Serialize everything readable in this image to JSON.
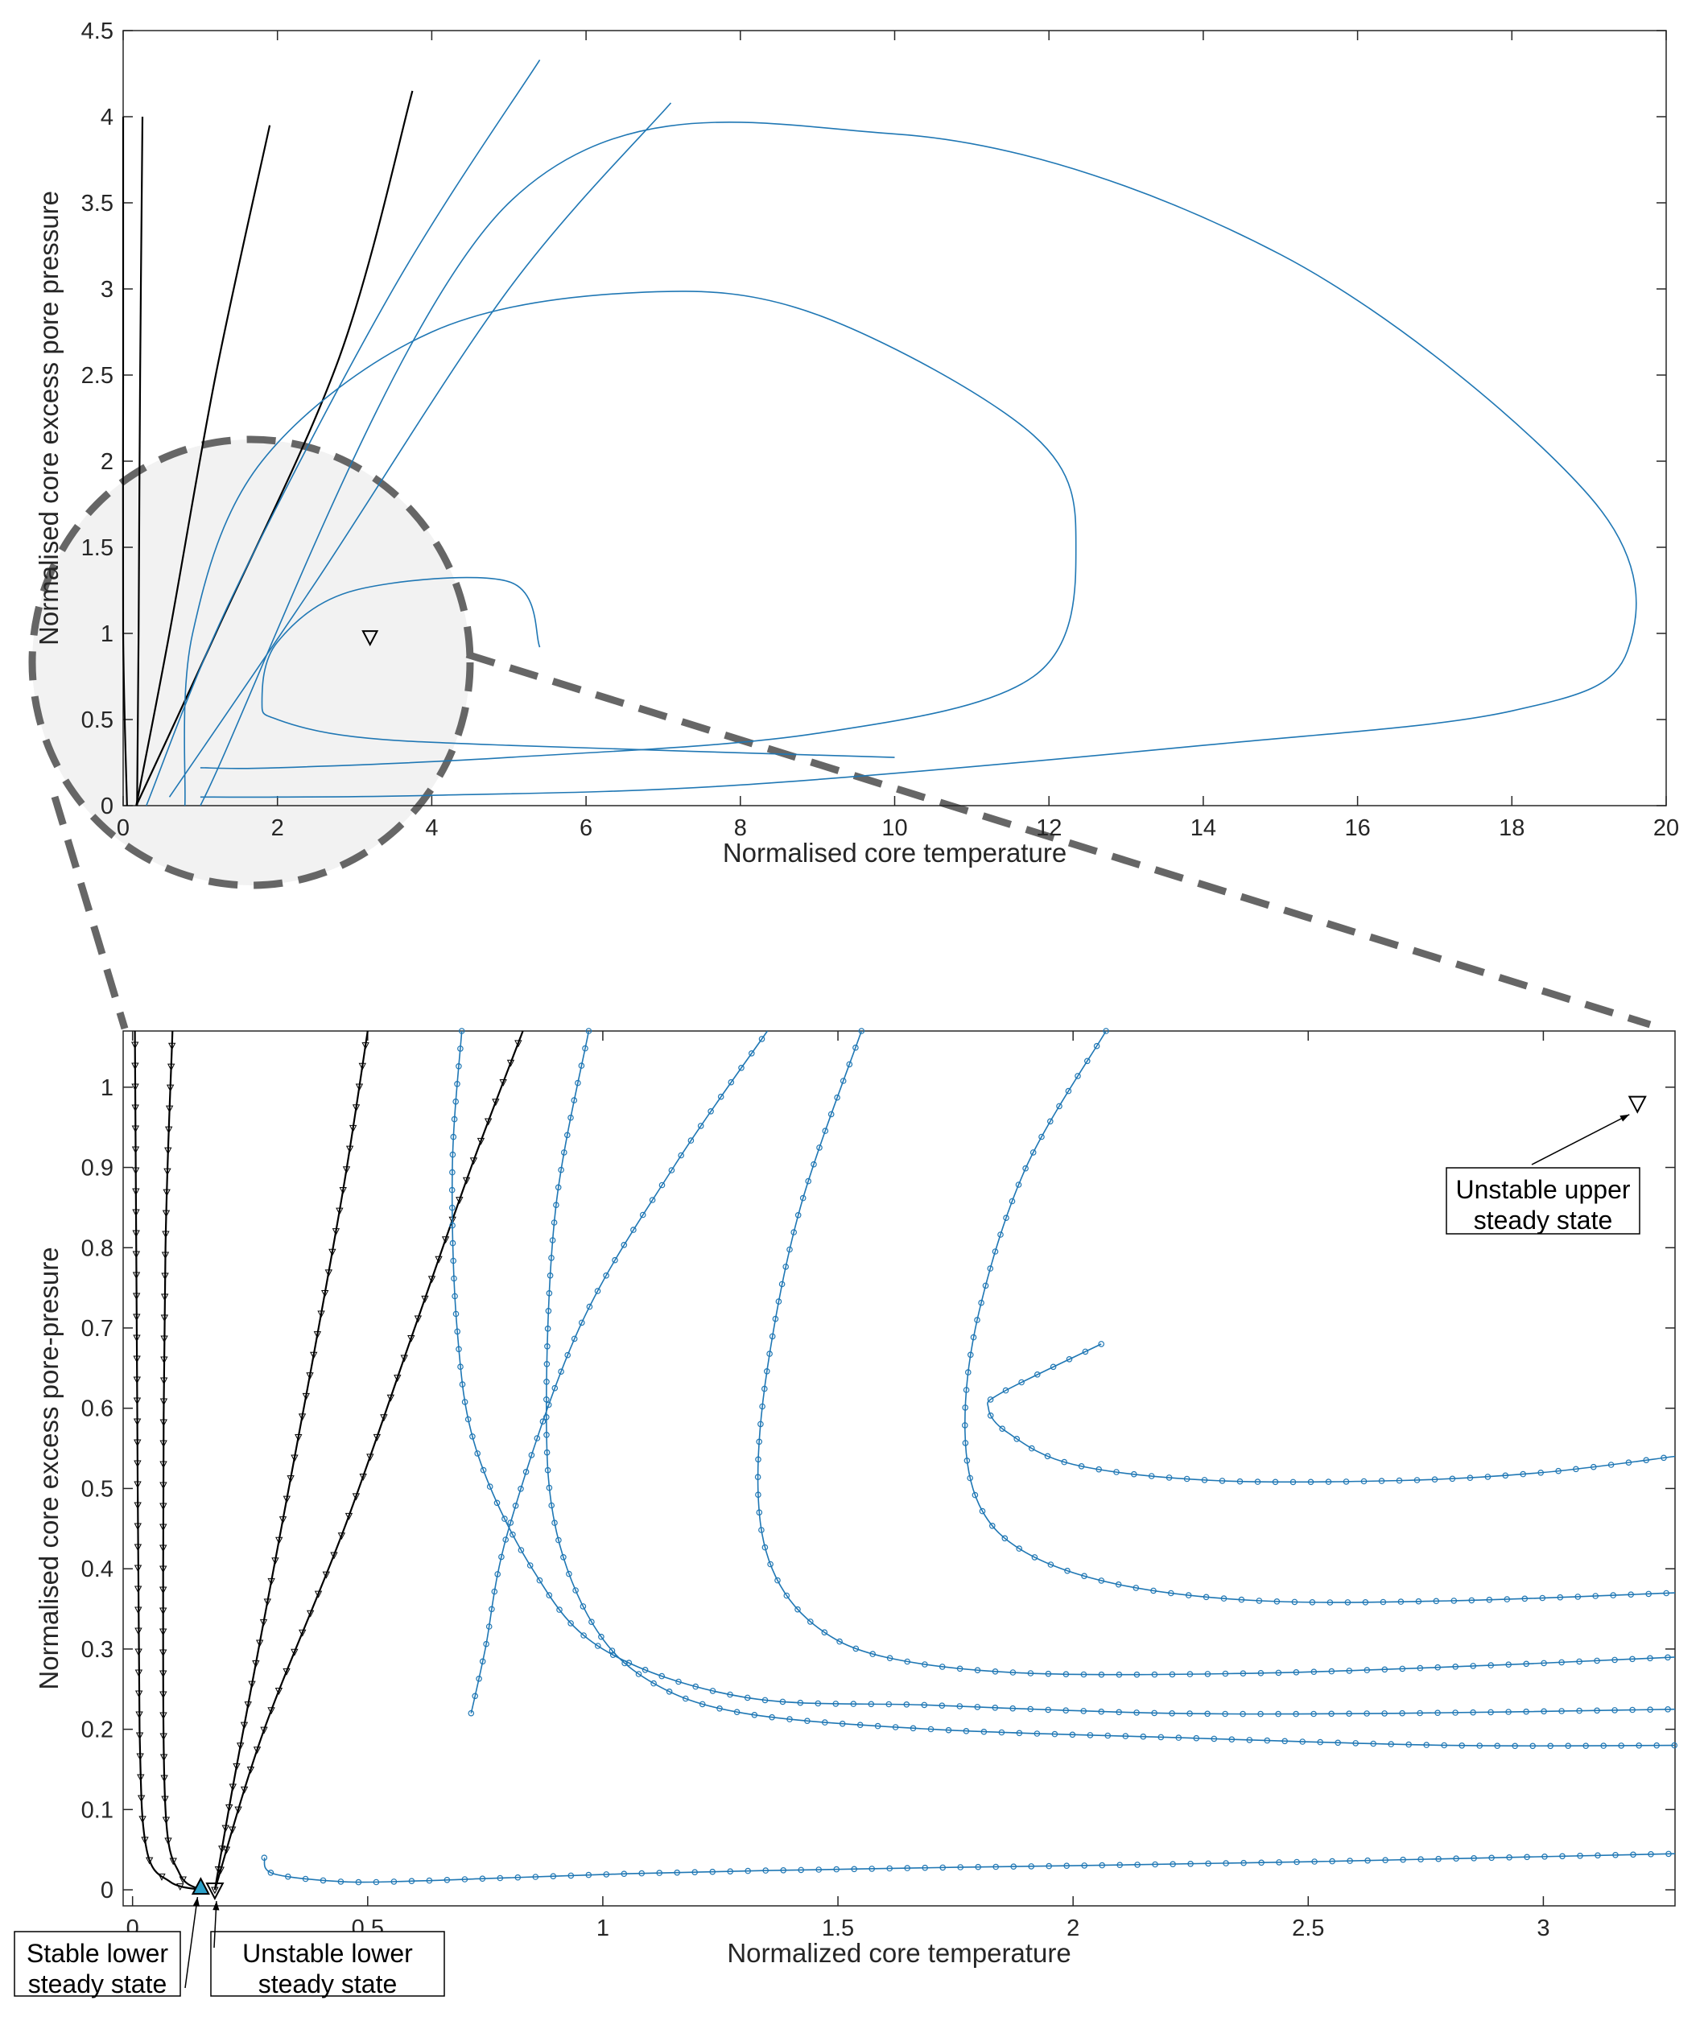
{
  "chart_data": [
    {
      "type": "line",
      "title": "",
      "xlabel": "Normalised core temperature",
      "ylabel": "Normalised core excess pore pressure",
      "xlim": [
        0,
        20
      ],
      "ylim": [
        0,
        4.5
      ],
      "xticks": [
        "0",
        "2",
        "4",
        "6",
        "8",
        "10",
        "12",
        "14",
        "16",
        "18",
        "20"
      ],
      "yticks": [
        "0",
        "0.5",
        "1",
        "1.5",
        "2",
        "2.5",
        "3",
        "3.5",
        "4",
        "4.5"
      ],
      "grid": false,
      "colors": {
        "trajectory": "#1f77b4",
        "black_trajectory": "#000000",
        "zoom_region": "#f2f2f2",
        "zoom_outline": "#666666"
      },
      "series": [
        {
          "color": "black",
          "x": [
            0.05,
            0.0,
            0.0,
            0.0
          ],
          "y": [
            0.0,
            1.0,
            2.5,
            4.0
          ]
        },
        {
          "color": "black",
          "x": [
            0.18,
            0.2,
            0.22,
            0.25
          ],
          "y": [
            0.0,
            1.0,
            2.5,
            4.0
          ]
        },
        {
          "color": "black",
          "x": [
            0.17,
            0.6,
            1.2,
            1.9
          ],
          "y": [
            0.0,
            1.0,
            2.5,
            3.95
          ]
        },
        {
          "color": "black",
          "x": [
            0.17,
            1.2,
            2.8,
            3.75
          ],
          "y": [
            0.0,
            1.0,
            2.6,
            4.15
          ]
        },
        {
          "color": "blue",
          "x": [
            0.3,
            1.4,
            3.5,
            5.4
          ],
          "y": [
            0.0,
            1.2,
            3.0,
            4.33
          ]
        },
        {
          "color": "blue",
          "x": [
            0.6,
            2.5,
            5.0,
            7.1
          ],
          "y": [
            0.05,
            1.3,
            3.0,
            4.08
          ]
        },
        {
          "color": "blue",
          "x": [
            0.8,
            0.9,
            1.8,
            4.0,
            6.7,
            9.0,
            11.8,
            12.35,
            11.8,
            9.0,
            5.0,
            2.0,
            1.0
          ],
          "y": [
            0.0,
            1.0,
            2.0,
            2.75,
            2.98,
            2.85,
            2.15,
            1.5,
            0.75,
            0.42,
            0.28,
            0.22,
            0.22
          ]
        },
        {
          "color": "blue",
          "x": [
            1.0,
            5.0,
            10.0,
            15.0,
            19.0,
            19.5,
            18.0,
            14.0,
            8.0,
            4.0,
            2.0,
            1.0
          ],
          "y": [
            0.0,
            3.5,
            3.9,
            3.2,
            1.8,
            0.9,
            0.55,
            0.35,
            0.12,
            0.06,
            0.05,
            0.05
          ]
        },
        {
          "color": "blue",
          "x": [
            5.4,
            5.0,
            3.0,
            2.0,
            1.8,
            2.0,
            3.0,
            5.0,
            10.0
          ],
          "y": [
            0.92,
            1.3,
            1.25,
            0.95,
            0.6,
            0.5,
            0.4,
            0.35,
            0.28
          ]
        }
      ],
      "markers": [
        {
          "label": "upper steady state",
          "x": 3.2,
          "y": 0.98,
          "shape": "triangle-down"
        }
      ],
      "annotations": []
    },
    {
      "type": "line",
      "title": "",
      "xlabel": "Normalized core temperature",
      "ylabel": "Normalised core excess pore-presure",
      "xlim": [
        -0.02,
        3.28
      ],
      "ylim": [
        -0.02,
        1.07
      ],
      "xticks": [
        "0",
        "0.5",
        "1",
        "1.5",
        "2",
        "2.5",
        "3"
      ],
      "yticks": [
        "0",
        "0.1",
        "0.2",
        "0.3",
        "0.4",
        "0.5",
        "0.6",
        "0.7",
        "0.8",
        "0.9",
        "1"
      ],
      "grid": false,
      "series": [
        {
          "color": "black",
          "x": [
            0.145,
            0.08,
            0.03,
            0.015,
            0.01,
            0.005
          ],
          "y": [
            0.0,
            0.01,
            0.05,
            0.2,
            0.6,
            1.07
          ]
        },
        {
          "color": "black",
          "x": [
            0.145,
            0.1,
            0.07,
            0.065,
            0.07,
            0.085
          ],
          "y": [
            0.0,
            0.02,
            0.1,
            0.4,
            0.8,
            1.07
          ]
        },
        {
          "color": "black",
          "x": [
            0.175,
            0.22,
            0.3,
            0.38,
            0.45,
            0.5
          ],
          "y": [
            0.0,
            0.15,
            0.4,
            0.65,
            0.88,
            1.07
          ]
        },
        {
          "color": "black",
          "x": [
            0.175,
            0.28,
            0.45,
            0.6,
            0.72,
            0.83
          ],
          "y": [
            0.0,
            0.2,
            0.45,
            0.7,
            0.9,
            1.07
          ]
        },
        {
          "color": "blue",
          "x": [
            0.72,
            0.75,
            0.8,
            0.95,
            1.15,
            1.35
          ],
          "y": [
            0.22,
            0.3,
            0.45,
            0.7,
            0.9,
            1.07
          ]
        },
        {
          "color": "blue",
          "x": [
            0.28,
            0.3,
            0.45,
            0.6,
            0.75,
            0.9,
            1.05,
            1.2,
            1.35,
            1.55,
            1.75,
            2.0,
            2.5,
            3.28
          ],
          "y": [
            0.04,
            0.02,
            0.01,
            0.011,
            0.014,
            0.017,
            0.02,
            0.022,
            0.024,
            0.026,
            0.028,
            0.03,
            0.035,
            0.045
          ]
        },
        {
          "color": "blue",
          "x": [
            0.7,
            0.68,
            0.69,
            0.73,
            0.85,
            1.0,
            1.3,
            1.7,
            2.2,
            2.7,
            3.28
          ],
          "y": [
            1.07,
            0.9,
            0.7,
            0.55,
            0.4,
            0.3,
            0.24,
            0.23,
            0.22,
            0.22,
            0.225
          ]
        },
        {
          "color": "blue",
          "x": [
            0.97,
            0.9,
            0.88,
            0.9,
            0.98,
            1.1,
            1.3,
            1.7,
            2.2,
            2.8,
            3.28
          ],
          "y": [
            1.07,
            0.85,
            0.6,
            0.45,
            0.33,
            0.26,
            0.22,
            0.2,
            0.19,
            0.18,
            0.18
          ]
        },
        {
          "color": "blue",
          "x": [
            1.55,
            1.42,
            1.35,
            1.33,
            1.36,
            1.45,
            1.6,
            1.9,
            2.4,
            2.9,
            3.28
          ],
          "y": [
            1.07,
            0.85,
            0.65,
            0.5,
            0.4,
            0.33,
            0.29,
            0.27,
            0.27,
            0.28,
            0.29
          ]
        },
        {
          "color": "blue",
          "x": [
            2.07,
            1.9,
            1.8,
            1.77,
            1.8,
            1.9,
            2.1,
            2.4,
            2.8,
            3.28
          ],
          "y": [
            1.07,
            0.9,
            0.72,
            0.58,
            0.48,
            0.42,
            0.38,
            0.36,
            0.36,
            0.37
          ]
        },
        {
          "color": "blue",
          "x": [
            2.06,
            1.85,
            1.82,
            1.86,
            2.0,
            2.3,
            2.7,
            3.0,
            3.28
          ],
          "y": [
            0.68,
            0.62,
            0.6,
            0.57,
            0.53,
            0.51,
            0.51,
            0.52,
            0.54
          ]
        }
      ],
      "markers": [
        {
          "label": "Stable lower steady state",
          "x": 0.145,
          "y": 0.003,
          "shape": "triangle-up"
        },
        {
          "label": "Unstable lower steady state",
          "x": 0.175,
          "y": 0.0,
          "shape": "triangle-down"
        },
        {
          "label": "Unstable upper steady state",
          "x": 3.2,
          "y": 0.98,
          "shape": "triangle-down"
        }
      ],
      "annotations": [
        {
          "text": [
            "Unstable upper",
            "steady state"
          ]
        },
        {
          "text": [
            "Stable lower",
            "steady state"
          ]
        },
        {
          "text": [
            "Unstable lower",
            "steady state"
          ]
        }
      ]
    }
  ]
}
